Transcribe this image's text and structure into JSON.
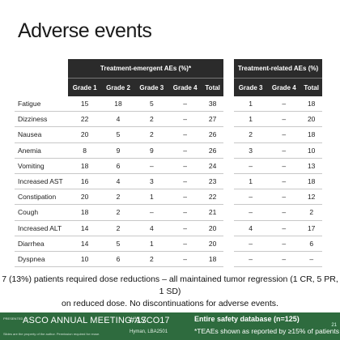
{
  "title": "Adverse events",
  "teae_header": "Treatment-emergent AEs (%)*",
  "trae_header": "Treatment-related AEs (%)",
  "teae_columns": [
    "Grade 1",
    "Grade 2",
    "Grade 3",
    "Grade 4",
    "Total"
  ],
  "trae_columns": [
    "Grade 3",
    "Grade 4",
    "Total"
  ],
  "rows": [
    {
      "event": "Fatigue",
      "teae": [
        "15",
        "18",
        "5",
        "–",
        "38"
      ],
      "trae": [
        "1",
        "–",
        "18"
      ]
    },
    {
      "event": "Dizziness",
      "teae": [
        "22",
        "4",
        "2",
        "–",
        "27"
      ],
      "trae": [
        "1",
        "–",
        "20"
      ]
    },
    {
      "event": "Nausea",
      "teae": [
        "20",
        "5",
        "2",
        "–",
        "26"
      ],
      "trae": [
        "2",
        "–",
        "18"
      ]
    },
    {
      "event": "Anemia",
      "teae": [
        "8",
        "9",
        "9",
        "–",
        "26"
      ],
      "trae": [
        "3",
        "–",
        "10"
      ]
    },
    {
      "event": "Vomiting",
      "teae": [
        "18",
        "6",
        "–",
        "–",
        "24"
      ],
      "trae": [
        "–",
        "–",
        "13"
      ]
    },
    {
      "event": "Increased AST",
      "teae": [
        "16",
        "4",
        "3",
        "–",
        "23"
      ],
      "trae": [
        "1",
        "–",
        "18"
      ]
    },
    {
      "event": "Constipation",
      "teae": [
        "20",
        "2",
        "1",
        "–",
        "22"
      ],
      "trae": [
        "–",
        "–",
        "12"
      ]
    },
    {
      "event": "Cough",
      "teae": [
        "18",
        "2",
        "–",
        "–",
        "21"
      ],
      "trae": [
        "–",
        "–",
        "2"
      ]
    },
    {
      "event": "Increased ALT",
      "teae": [
        "14",
        "2",
        "4",
        "–",
        "20"
      ],
      "trae": [
        "4",
        "–",
        "17"
      ]
    },
    {
      "event": "Diarrhea",
      "teae": [
        "14",
        "5",
        "1",
        "–",
        "20"
      ],
      "trae": [
        "–",
        "–",
        "6"
      ]
    },
    {
      "event": "Dyspnea",
      "teae": [
        "10",
        "6",
        "2",
        "–",
        "18"
      ],
      "trae": [
        "–",
        "–",
        "–"
      ]
    }
  ],
  "note_line1": "7 (13%) patients required dose reductions – all maintained tumor regression (1 CR, 5 PR, 1 SD)",
  "note_line2": "on reduced dose. No discontinuations for adverse events.",
  "footer": {
    "presented_at": "PRESENTED AT:",
    "meeting": "ASCO ANNUAL MEETING '17",
    "hashtag": "#ASCO17",
    "disclaimer": "Slides are the property of the author. Permission required for reuse.",
    "presenter": "Hyman, LBA2501",
    "database": "Entire safety database (n=125)",
    "teae_note": "*TEAEs shown as reported by ≥15% of patients",
    "page": "21"
  },
  "colors": {
    "header_bg": "#2b2b2b",
    "footer_bg": "#2e6b3e"
  }
}
